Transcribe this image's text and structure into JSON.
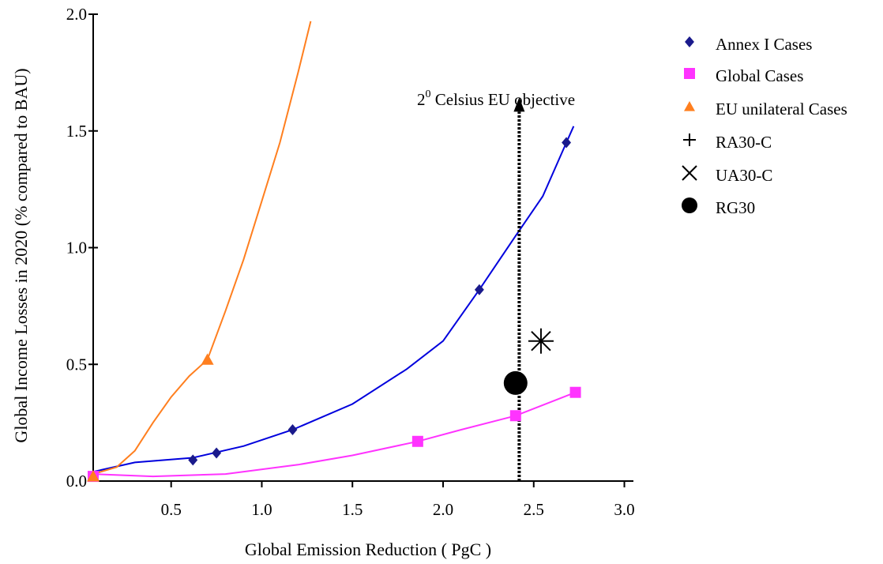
{
  "chart_data": {
    "type": "scatter",
    "title": "",
    "xlabel": "Global Emission Reduction ( PgC )",
    "ylabel": "Global Income Losses in 2020 (% compared to BAU)",
    "xlim": [
      0.07,
      3.05
    ],
    "ylim": [
      0.0,
      2.0
    ],
    "x_ticks": [
      "0.5",
      "1.0",
      "1.5",
      "2.0",
      "2.5",
      "3.0"
    ],
    "y_ticks": [
      "0.0",
      "0.5",
      "1.0",
      "1.5",
      "2.0"
    ],
    "grid": false,
    "legend_position": "right",
    "colors": {
      "annex": "#1a1a8c",
      "annex_line": "#0000dd",
      "global": "#ff33ff",
      "eu": "#ff7f1f",
      "objective": "#000000"
    },
    "series": [
      {
        "name": "Annex I Cases",
        "marker": "diamond",
        "points": [
          [
            0.62,
            0.09
          ],
          [
            0.75,
            0.12
          ],
          [
            1.17,
            0.22
          ],
          [
            2.2,
            0.82
          ],
          [
            2.68,
            1.45
          ]
        ],
        "curve": [
          [
            0.07,
            0.04
          ],
          [
            0.3,
            0.08
          ],
          [
            0.62,
            0.1
          ],
          [
            0.9,
            0.15
          ],
          [
            1.17,
            0.22
          ],
          [
            1.5,
            0.33
          ],
          [
            1.8,
            0.48
          ],
          [
            2.0,
            0.6
          ],
          [
            2.2,
            0.82
          ],
          [
            2.4,
            1.05
          ],
          [
            2.55,
            1.22
          ],
          [
            2.68,
            1.45
          ],
          [
            2.72,
            1.52
          ]
        ]
      },
      {
        "name": "Global Cases",
        "marker": "square",
        "points": [
          [
            0.07,
            0.02
          ],
          [
            1.86,
            0.17
          ],
          [
            2.4,
            0.28
          ],
          [
            2.73,
            0.38
          ]
        ],
        "curve": [
          [
            0.07,
            0.03
          ],
          [
            0.4,
            0.02
          ],
          [
            0.8,
            0.03
          ],
          [
            1.2,
            0.07
          ],
          [
            1.5,
            0.11
          ],
          [
            1.86,
            0.17
          ],
          [
            2.1,
            0.22
          ],
          [
            2.4,
            0.28
          ],
          [
            2.73,
            0.38
          ]
        ]
      },
      {
        "name": "EU unilateral Cases",
        "marker": "triangle",
        "points": [
          [
            0.07,
            0.02
          ],
          [
            0.7,
            0.52
          ]
        ],
        "curve": [
          [
            0.07,
            0.03
          ],
          [
            0.2,
            0.06
          ],
          [
            0.3,
            0.13
          ],
          [
            0.4,
            0.25
          ],
          [
            0.5,
            0.36
          ],
          [
            0.6,
            0.45
          ],
          [
            0.7,
            0.52
          ],
          [
            0.8,
            0.73
          ],
          [
            0.9,
            0.95
          ],
          [
            1.0,
            1.2
          ],
          [
            1.1,
            1.45
          ],
          [
            1.2,
            1.75
          ],
          [
            1.27,
            1.97
          ]
        ]
      },
      {
        "name": "RA30-C",
        "marker": "plus",
        "points": [
          [
            2.54,
            0.6
          ]
        ]
      },
      {
        "name": "UA30-C",
        "marker": "x",
        "points": [
          [
            2.54,
            0.6
          ]
        ]
      },
      {
        "name": "RG30",
        "marker": "circle",
        "points": [
          [
            2.4,
            0.42
          ]
        ]
      }
    ],
    "annotations": [
      {
        "text_main": "2",
        "text_sup": "0",
        "text_rest": " Celsius EU objective",
        "x": 2.42,
        "y_from": 0.0,
        "y_to": 1.63
      }
    ]
  }
}
